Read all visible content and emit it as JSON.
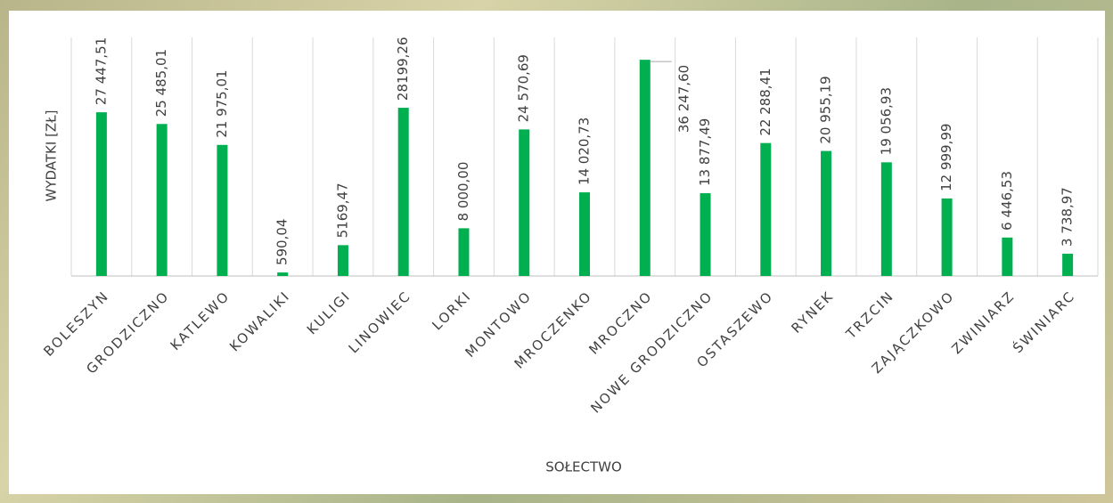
{
  "chart_data": {
    "type": "bar",
    "x_label": "SOŁECTWO",
    "y_label": "WYDATKI [ZŁ]",
    "categories": [
      "BOLESZYN",
      "GRODZICZNO",
      "KATLEWO",
      "KOWALIKI",
      "KULIGI",
      "LINOWIEC",
      "LORKI",
      "MONTOWO",
      "MROCZENKO",
      "MROCZNO",
      "NOWE GRODZICZNO",
      "OSTASZEWO",
      "RYNEK",
      "TRZCIN",
      "ZAJĄCZKOWO",
      "ZWINIARZ",
      "ŚWINIARC"
    ],
    "values": [
      27447.51,
      25485.01,
      21975.01,
      590.04,
      5169.47,
      28199.26,
      8000.0,
      24570.69,
      14020.73,
      36247.6,
      13877.49,
      22288.41,
      20955.19,
      19056.93,
      12999.99,
      6446.53,
      3738.97
    ],
    "value_labels": [
      "27 447,51",
      "25 485,01",
      "21 975,01",
      "590,04",
      "5169,47",
      "28199,26",
      "8 000,00",
      "24 570,69",
      "14 020,73",
      "36 247,60",
      "13 877,49",
      "22 288,41",
      "20 955,19",
      "19 056,93",
      "12 999,99",
      "6 446,53",
      "3 738,97"
    ],
    "color": "#00b050",
    "ylim": [
      0,
      40000
    ]
  }
}
